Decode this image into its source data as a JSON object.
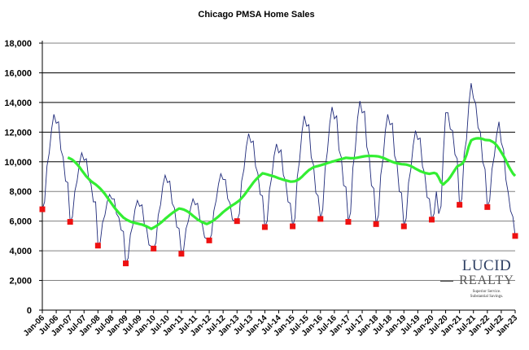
{
  "chart_data": {
    "type": "line",
    "title": "Chicago PMSA Home Sales",
    "xlabel": "",
    "ylabel": "",
    "ylim": [
      0,
      18000
    ],
    "yticks": [
      "0",
      "2,000",
      "4,000",
      "6,000",
      "8,000",
      "10,000",
      "12,000",
      "14,000",
      "16,000",
      "18,000"
    ],
    "ytick_values": [
      0,
      2000,
      4000,
      6000,
      8000,
      10000,
      12000,
      14000,
      16000,
      18000
    ],
    "xticks": [
      "Jan-06",
      "Jul-06",
      "Jan-07",
      "Jul-07",
      "Jan-08",
      "Jul-08",
      "Jan-09",
      "Jul-09",
      "Jan-10",
      "Jul-10",
      "Jan-11",
      "Jul-11",
      "Jan-12",
      "Jul-12",
      "Jan-13",
      "Jul-13",
      "Jan-14",
      "Jul-14",
      "Jan-15",
      "Jul-15",
      "Jan-16",
      "Jul-16",
      "Jan-17",
      "Jul-17",
      "Jan-18",
      "Jul-18",
      "Jan-19",
      "Jul-19",
      "Jan-20",
      "Jul-20",
      "Jan-21",
      "Jul-21",
      "Jan-22",
      "Jul-22",
      "Jan-23"
    ],
    "x_start": "Jan-06",
    "x_frequency": "monthly",
    "grid": true,
    "legend": "none",
    "series": [
      {
        "role": "monthly sales",
        "color": "#1f2a7a",
        "values": [
          6800,
          7300,
          9700,
          10600,
          12200,
          13200,
          12600,
          12700,
          10800,
          10300,
          8700,
          8600,
          5950,
          6300,
          8000,
          8700,
          9900,
          10600,
          10100,
          10200,
          8800,
          8500,
          7300,
          7300,
          4350,
          4600,
          5900,
          6400,
          7300,
          7800,
          7500,
          7500,
          6500,
          6250,
          5400,
          5300,
          3150,
          3500,
          5100,
          5700,
          6800,
          7400,
          7000,
          7100,
          5800,
          5500,
          4400,
          4300,
          4150,
          4550,
          6400,
          7100,
          8400,
          9100,
          8600,
          8700,
          7200,
          6900,
          5600,
          5500,
          3800,
          4100,
          5500,
          6000,
          6900,
          7500,
          7100,
          7200,
          6100,
          5800,
          4900,
          4800,
          4700,
          5100,
          6700,
          7400,
          8500,
          9200,
          8800,
          8800,
          7500,
          7200,
          6100,
          6000,
          6000,
          6500,
          8700,
          9500,
          11000,
          11900,
          11300,
          11400,
          9700,
          9200,
          7800,
          7700,
          5600,
          6000,
          8100,
          9000,
          10400,
          11200,
          10600,
          10800,
          9100,
          8700,
          7300,
          7200,
          5650,
          6200,
          9000,
          10100,
          12000,
          13100,
          12400,
          12500,
          10300,
          9800,
          7900,
          7700,
          6150,
          6800,
          9550,
          10700,
          12600,
          13700,
          12900,
          13100,
          10800,
          10300,
          8400,
          8300,
          5950,
          6600,
          9600,
          10800,
          12900,
          14100,
          13300,
          13400,
          11000,
          10400,
          8400,
          8200,
          5800,
          6400,
          9100,
          10200,
          12100,
          13200,
          12500,
          12600,
          10400,
          9900,
          8000,
          7900,
          5650,
          6200,
          8600,
          9500,
          11100,
          12100,
          11500,
          11600,
          9700,
          9200,
          7600,
          7500,
          6100,
          6500,
          8000,
          6500,
          7000,
          10500,
          13300,
          13300,
          12200,
          12100,
          10500,
          10200,
          7100,
          7500,
          10500,
          11500,
          13800,
          15300,
          14300,
          13900,
          12300,
          12000,
          10000,
          9500,
          6950,
          7400,
          9500,
          10400,
          11800,
          12700,
          11300,
          10800,
          8800,
          7900,
          6700,
          6300,
          5000
        ]
      },
      {
        "role": "12-month moving average",
        "color": "#33ee33",
        "moving_average_window": 12
      },
      {
        "role": "January sales",
        "color": "#ee1111",
        "marker": "square",
        "x": [
          "Jan-06",
          "Jan-07",
          "Jan-08",
          "Jan-09",
          "Jan-10",
          "Jan-11",
          "Jan-12",
          "Jan-13",
          "Jan-14",
          "Jan-15",
          "Jan-16",
          "Jan-17",
          "Jan-18",
          "Jan-19",
          "Jan-20",
          "Jan-21",
          "Jan-22",
          "Jan-23"
        ],
        "values": [
          6800,
          5950,
          4350,
          3150,
          4150,
          3800,
          4700,
          6000,
          5600,
          5650,
          6150,
          5950,
          5800,
          5650,
          6100,
          7100,
          6950,
          5000
        ]
      }
    ],
    "gridline_colors": {
      "minor": "#808080",
      "major": "#000000"
    }
  },
  "logo": {
    "line1": "LUCID",
    "line2": "REALTY",
    "tagline1": "Superior Service.",
    "tagline2": "Substantial Savings."
  }
}
